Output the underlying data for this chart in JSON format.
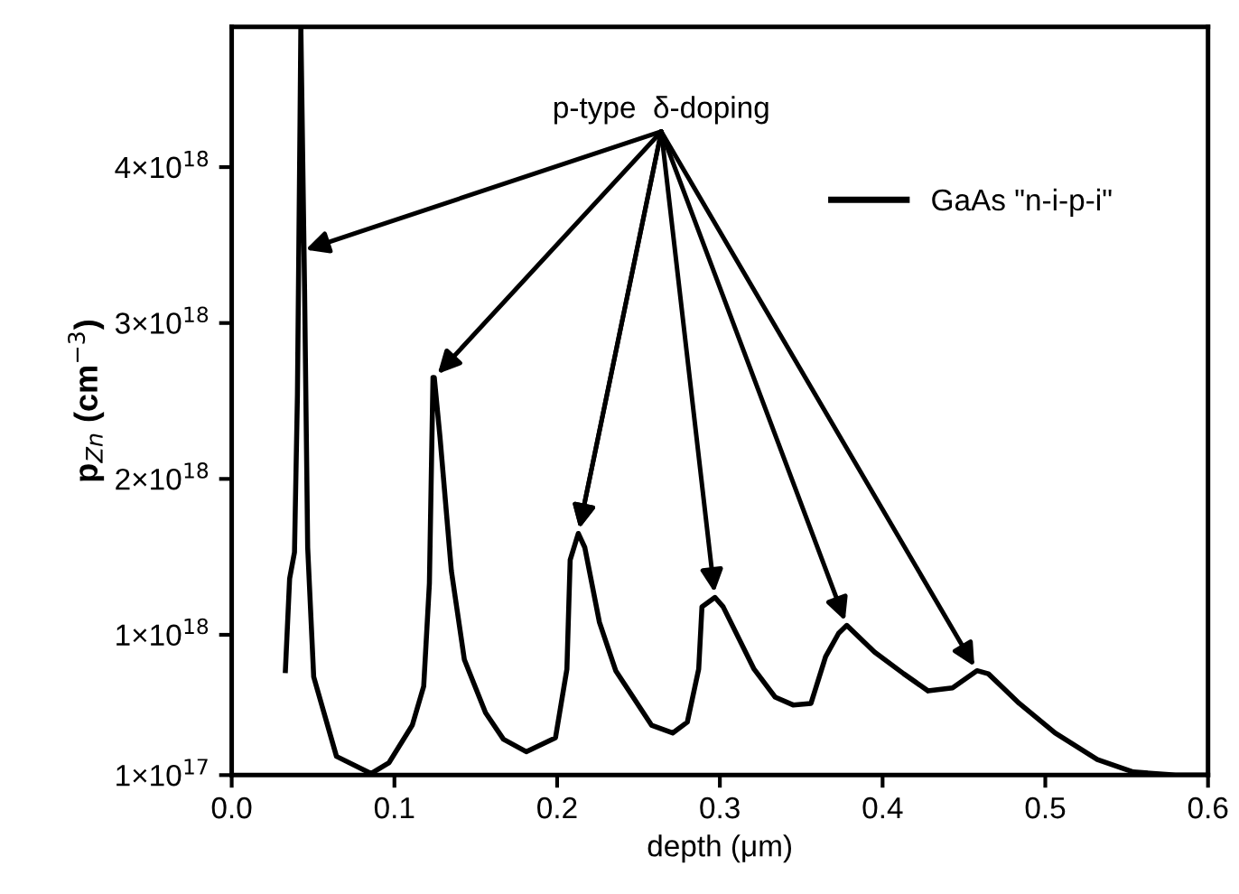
{
  "chart_data": {
    "type": "line",
    "xlabel": "depth (μm)",
    "ylabel": "p$_{Zn}$ (cm$^{−3}$)",
    "xlim": [
      0,
      0.6
    ],
    "xticks": [
      {
        "value": 0,
        "label": "0.0"
      },
      0.1,
      0.2,
      0.3,
      0.4,
      0.5,
      0.6
    ],
    "ylim": [
      1e+17,
      4.9e+18
    ],
    "yticks": [
      {
        "value": 1e+17,
        "label": "1×10$^{17}$"
      },
      {
        "value": 1e+18,
        "label": "1×10$^{18}$"
      },
      {
        "value": 2e+18,
        "label": "2×10$^{18}$"
      },
      {
        "value": 3e+18,
        "label": "3×10$^{18}$"
      },
      {
        "value": 4e+18,
        "label": "4×10$^{18}$"
      }
    ],
    "grid": false,
    "legend": "top right",
    "marker": "none",
    "line_style": "solid",
    "annotations": [
      {
        "text": "p-type  δ-doping",
        "x": 0.213,
        "y": 1.65e+18
      }
    ],
    "series": [
      {
        "name": "GaAs \"n-i-p-i\"",
        "color": "#000000",
        "x": [
          0.033,
          0.0356,
          0.0386,
          0.0404,
          0.042,
          0.0425,
          0.0448,
          0.0467,
          0.0504,
          0.0644,
          0.0856,
          0.0967,
          0.111,
          0.118,
          0.1215,
          0.1237,
          0.1245,
          0.128,
          0.135,
          0.143,
          0.156,
          0.167,
          0.181,
          0.199,
          0.206,
          0.208,
          0.213,
          0.217,
          0.226,
          0.236,
          0.258,
          0.271,
          0.28,
          0.287,
          0.289,
          0.297,
          0.302,
          0.321,
          0.334,
          0.345,
          0.356,
          0.365,
          0.373,
          0.378,
          0.395,
          0.413,
          0.428,
          0.443,
          0.458,
          0.465,
          0.484,
          0.506,
          0.532,
          0.554,
          0.58,
          0.6
        ],
        "values": [
          7.7e+17,
          1.36e+18,
          1.53e+18,
          2.54e+18,
          4.3e+18,
          4.9e+18,
          3.21e+18,
          1.56e+18,
          7.3e+17,
          2.2e+17,
          1.1e+17,
          1.8e+17,
          4.2e+17,
          6.7e+17,
          1.33e+18,
          2.65e+18,
          2.65e+18,
          2.27e+18,
          1.41e+18,
          8.4e+17,
          5e+17,
          3.3e+17,
          2.5e+17,
          3.4e+17,
          7.8e+17,
          1.48e+18,
          1.65e+18,
          1.56e+18,
          1.08e+18,
          7.7e+17,
          4.2e+17,
          3.7e+17,
          4.4e+17,
          7.8e+17,
          1.18e+18,
          1.24e+18,
          1.18e+18,
          7.8e+17,
          6e+17,
          5.5e+17,
          5.6e+17,
          8.6e+17,
          1.01e+18,
          1.06e+18,
          8.9e+17,
          7.5e+17,
          6.4e+17,
          6.6e+17,
          7.7e+17,
          7.5e+17,
          5.6e+17,
          3.7e+17,
          2e+17,
          1.2e+17,
          1e+17,
          1e+17
        ]
      }
    ]
  }
}
